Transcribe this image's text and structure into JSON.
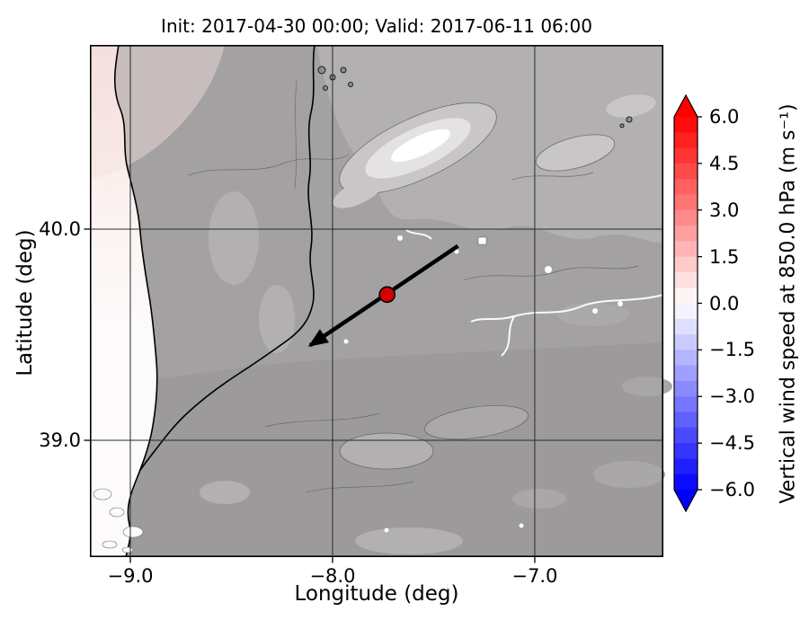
{
  "chart_data": {
    "type": "heatmap",
    "title": "Init: 2017-04-30 00:00; Valid: 2017-06-11 06:00",
    "xlabel": "Longitude (deg)",
    "ylabel": "Latitude (deg)",
    "xlim": [
      -9.2,
      -6.364
    ],
    "ylim": [
      38.447,
      40.872
    ],
    "grid": true,
    "xticks": [
      {
        "value": -9.0,
        "label": "−9.0"
      },
      {
        "value": -8.0,
        "label": "−8.0"
      },
      {
        "value": -7.0,
        "label": "−7.0"
      }
    ],
    "yticks": [
      {
        "value": 40.0,
        "label": "40.0"
      },
      {
        "value": 39.0,
        "label": "39.0"
      }
    ],
    "trajectory": {
      "type": "arrow",
      "from": {
        "lon": -7.38,
        "lat": 39.92
      },
      "to": {
        "lon": -8.11,
        "lat": 39.45
      },
      "color": "#000000",
      "width": 4.5
    },
    "marker": {
      "lon": -7.73,
      "lat": 39.69,
      "color": "#d60000",
      "edge_color": "#000000"
    },
    "colorbar": {
      "label": "Vertical wind speed at 850.0 hPa (m s⁻¹)",
      "vmin": -6.0,
      "vmax": 6.0,
      "step": 0.5,
      "cmap": "bwr",
      "extend": "both",
      "ticks": [
        {
          "value": 6.0,
          "label": "6.0"
        },
        {
          "value": 4.5,
          "label": "4.5"
        },
        {
          "value": 3.0,
          "label": "3.0"
        },
        {
          "value": 1.5,
          "label": "1.5"
        },
        {
          "value": 0.0,
          "label": "0.0"
        },
        {
          "value": -1.5,
          "label": "−1.5"
        },
        {
          "value": -3.0,
          "label": "−3.0"
        },
        {
          "value": -4.5,
          "label": "−4.5"
        },
        {
          "value": -6.0,
          "label": "−6.0"
        }
      ]
    },
    "colors": {
      "land_base": "#a3a1a1",
      "land_dark": "#9c9a9a",
      "ocean_white": "#fcfafa",
      "ocean_pink": "#f5e1de",
      "terrain_light_1": "#b2b0b0",
      "terrain_light_2": "#c8c6c6",
      "terrain_light_3": "#e4e2e2",
      "terrain_peak": "#ffffff",
      "contour": "#6b6969",
      "coastline": "#000000",
      "gridline": "#2a2a2a"
    }
  }
}
